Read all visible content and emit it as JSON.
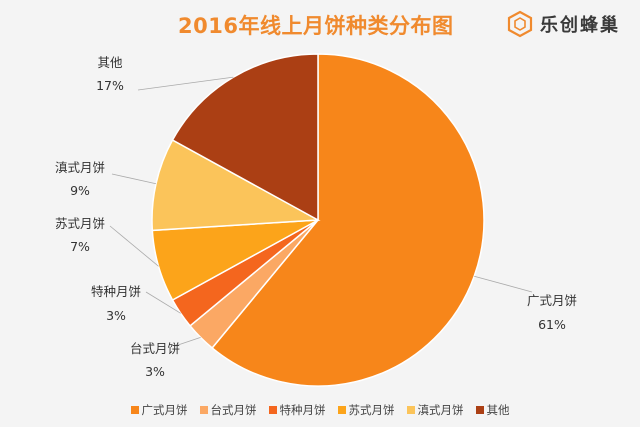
{
  "chart_data": {
    "type": "pie",
    "title": "2016年线上月饼种类分布图",
    "categories": [
      "广式月饼",
      "台式月饼",
      "特种月饼",
      "苏式月饼",
      "滇式月饼",
      "其他"
    ],
    "values": [
      61,
      3,
      3,
      7,
      9,
      17
    ],
    "value_labels": [
      "61%",
      "3%",
      "3%",
      "7%",
      "9%",
      "17%"
    ],
    "colors": [
      "#f7861a",
      "#fba864",
      "#f4661e",
      "#fca41a",
      "#fbc45a",
      "#ab3f14"
    ],
    "legend_position": "bottom",
    "start_angle": "top, clockwise"
  },
  "brand": {
    "name": "乐创蜂巢",
    "logo_icon": "hexagon-cube-icon"
  }
}
